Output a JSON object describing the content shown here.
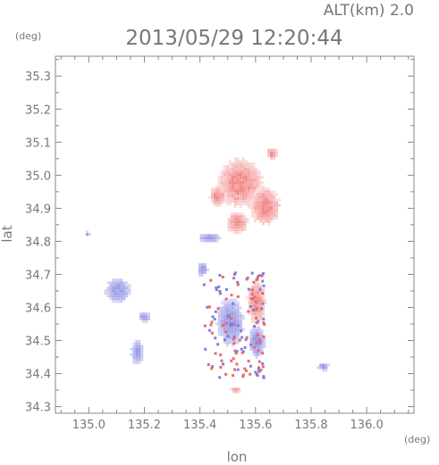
{
  "header": {
    "altitude_label": "ALT(km) 2.0",
    "timestamp": "2013/05/29 12:20:44"
  },
  "chart_data": {
    "type": "heatmap",
    "title": "2013/05/29 12:20:44",
    "subtitle": "ALT(km) 2.0",
    "xlabel": "lon",
    "ylabel": "lat",
    "x_unit": "(deg)",
    "y_unit": "(deg)",
    "xlim": [
      134.88,
      136.17
    ],
    "ylim": [
      34.28,
      35.36
    ],
    "xticks": [
      "135.0",
      "135.2",
      "135.4",
      "135.6",
      "135.8",
      "136.0"
    ],
    "yticks": [
      "34.3",
      "34.4",
      "34.5",
      "34.6",
      "34.7",
      "34.8",
      "34.9",
      "35.0",
      "35.1",
      "35.2",
      "35.3"
    ],
    "grid": false,
    "colors": {
      "positive": "#f28a8a",
      "negative": "#9a9ae6",
      "axis": "#888888",
      "text": "#777777"
    },
    "regions": [
      {
        "id": "echo-north-main",
        "sign": "positive",
        "lon": 135.54,
        "lat": 34.98,
        "rlon": 0.085,
        "rlat": 0.075
      },
      {
        "id": "echo-north-east",
        "sign": "positive",
        "lon": 135.63,
        "lat": 34.91,
        "rlon": 0.055,
        "rlat": 0.06
      },
      {
        "id": "echo-north-lobe",
        "sign": "positive",
        "lon": 135.53,
        "lat": 34.86,
        "rlon": 0.04,
        "rlat": 0.035
      },
      {
        "id": "echo-north-cap",
        "sign": "positive",
        "lon": 135.655,
        "lat": 35.07,
        "rlon": 0.022,
        "rlat": 0.018
      },
      {
        "id": "echo-north-fringe",
        "sign": "positive",
        "lon": 135.46,
        "lat": 34.94,
        "rlon": 0.03,
        "rlat": 0.03
      },
      {
        "id": "echo-mid-band",
        "sign": "negative",
        "lon": 135.43,
        "lat": 34.815,
        "rlon": 0.04,
        "rlat": 0.015
      },
      {
        "id": "echo-west-cell",
        "sign": "negative",
        "lon": 135.1,
        "lat": 34.655,
        "rlon": 0.045,
        "rlat": 0.04
      },
      {
        "id": "echo-central-cell",
        "sign": "negative",
        "lon": 135.505,
        "lat": 34.56,
        "rlon": 0.05,
        "rlat": 0.075
      },
      {
        "id": "echo-central-mix",
        "sign": "positive",
        "lon": 135.6,
        "lat": 34.62,
        "rlon": 0.035,
        "rlat": 0.07
      },
      {
        "id": "echo-central-mix-b",
        "sign": "negative",
        "lon": 135.6,
        "lat": 34.5,
        "rlon": 0.03,
        "rlat": 0.05
      },
      {
        "id": "echo-sw-small",
        "sign": "negative",
        "lon": 135.195,
        "lat": 34.575,
        "rlon": 0.022,
        "rlat": 0.018
      },
      {
        "id": "echo-sw-strip",
        "sign": "negative",
        "lon": 135.17,
        "lat": 34.47,
        "rlon": 0.022,
        "rlat": 0.04
      },
      {
        "id": "echo-mid-patch",
        "sign": "negative",
        "lon": 135.405,
        "lat": 34.72,
        "rlon": 0.02,
        "rlat": 0.022
      },
      {
        "id": "echo-east-small",
        "sign": "negative",
        "lon": 135.84,
        "lat": 34.425,
        "rlon": 0.02,
        "rlat": 0.013
      },
      {
        "id": "echo-south-small",
        "sign": "positive",
        "lon": 135.525,
        "lat": 34.355,
        "rlon": 0.018,
        "rlat": 0.01
      },
      {
        "id": "echo-far-west",
        "sign": "negative",
        "lon": 134.99,
        "lat": 34.825,
        "rlon": 0.01,
        "rlat": 0.008
      }
    ]
  }
}
